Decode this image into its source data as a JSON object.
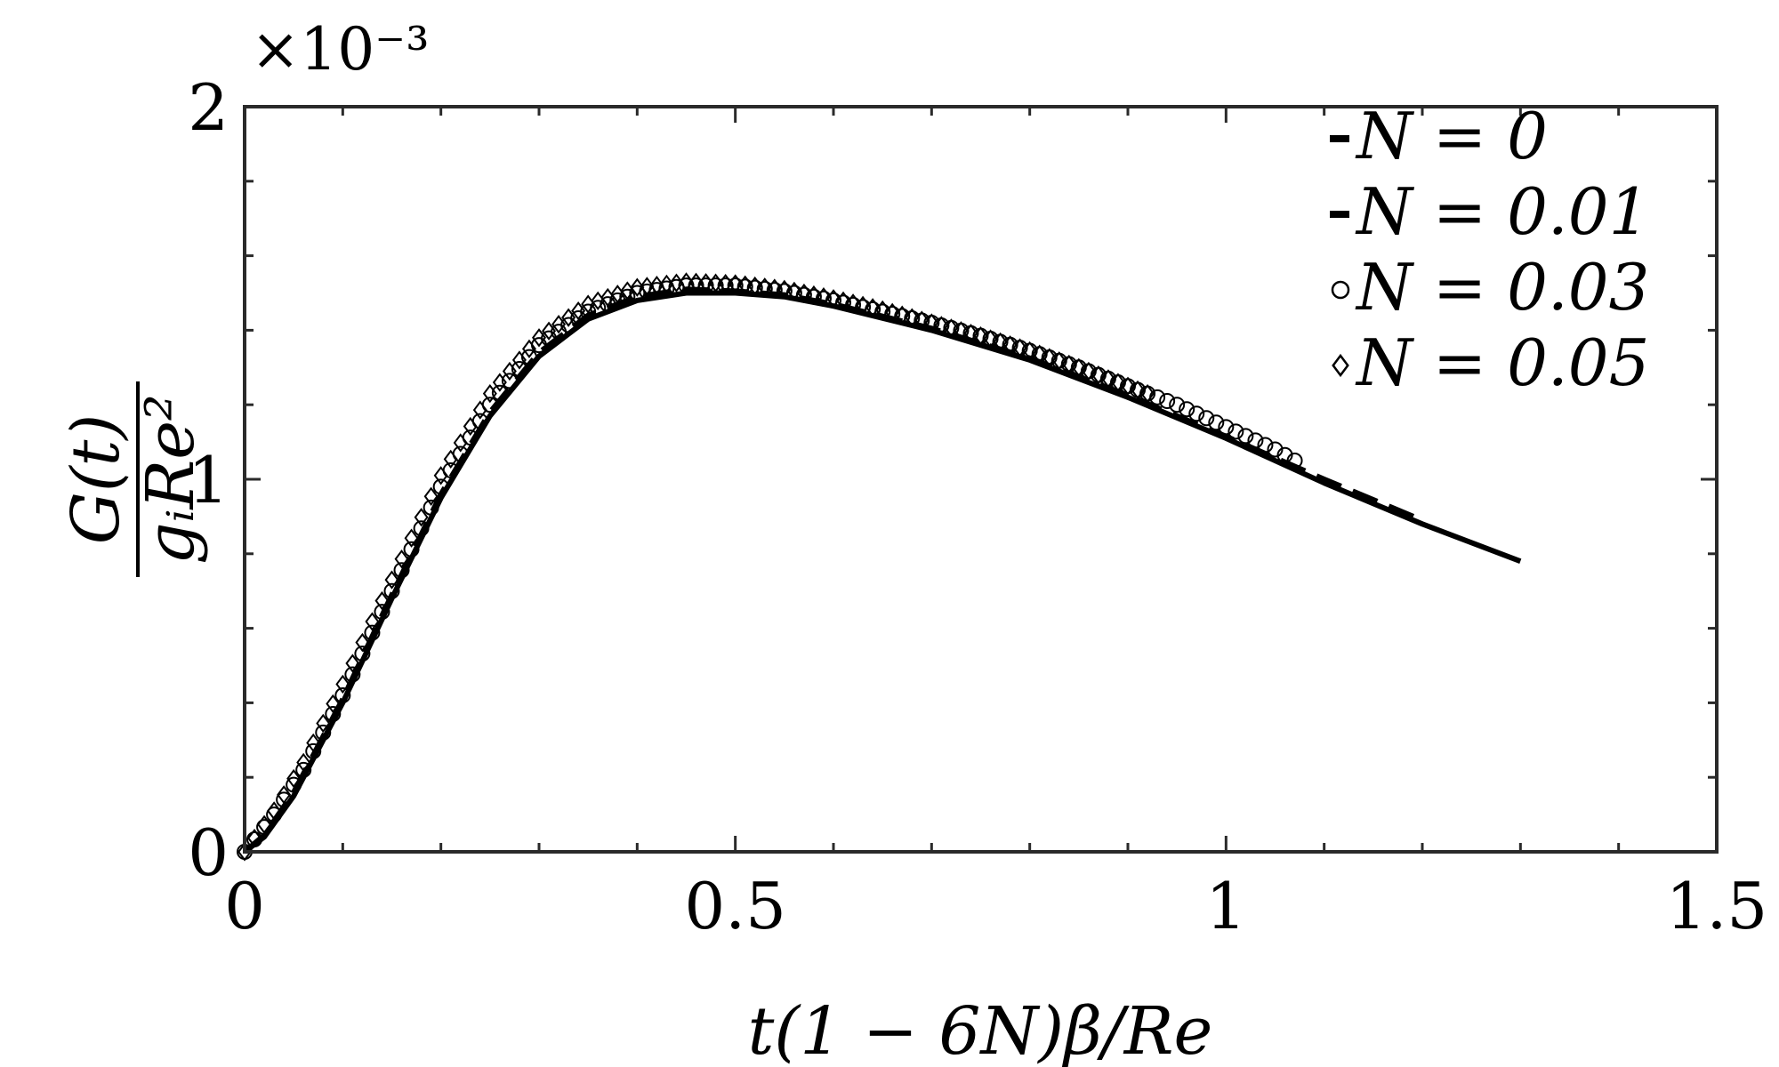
{
  "chart_data": {
    "type": "line",
    "xlabel": "t(1 − 6N)β/Re",
    "ylabel_numerator": "G(t)",
    "ylabel_denominator": "gᵢRe²",
    "y_exponent": "×10⁻³",
    "xlim": [
      0,
      1.5
    ],
    "ylim": [
      0,
      2
    ],
    "xticks": [
      0,
      0.5,
      1,
      1.5
    ],
    "xtick_labels": [
      "0",
      "0.5",
      "1",
      "1.5"
    ],
    "yticks": [
      0,
      1,
      2
    ],
    "ytick_labels": [
      "0",
      "1",
      "2"
    ],
    "x_minor_step": 0.1,
    "y_minor_step": 0.2,
    "grid": false,
    "legend_position": "top-right",
    "series": [
      {
        "name": "N = 0",
        "style": "solid",
        "marker": "none",
        "x": [
          0,
          0.02,
          0.05,
          0.08,
          0.1,
          0.15,
          0.2,
          0.25,
          0.3,
          0.35,
          0.4,
          0.45,
          0.5,
          0.55,
          0.6,
          0.7,
          0.8,
          0.9,
          1.0,
          1.1,
          1.2,
          1.3
        ],
        "y": [
          0,
          0.04,
          0.15,
          0.3,
          0.4,
          0.68,
          0.95,
          1.17,
          1.33,
          1.43,
          1.48,
          1.5,
          1.5,
          1.49,
          1.465,
          1.4,
          1.32,
          1.22,
          1.11,
          0.99,
          0.88,
          0.78
        ]
      },
      {
        "name": "N = 0.01",
        "style": "dashed",
        "marker": "none",
        "x": [
          0,
          0.02,
          0.05,
          0.08,
          0.1,
          0.15,
          0.2,
          0.25,
          0.3,
          0.35,
          0.4,
          0.45,
          0.5,
          0.55,
          0.6,
          0.7,
          0.8,
          0.9,
          1.0,
          1.1,
          1.2
        ],
        "y": [
          0,
          0.045,
          0.16,
          0.31,
          0.41,
          0.69,
          0.96,
          1.18,
          1.34,
          1.44,
          1.49,
          1.51,
          1.505,
          1.495,
          1.47,
          1.405,
          1.325,
          1.225,
          1.115,
          1.0,
          0.89
        ]
      },
      {
        "name": "N = 0.03",
        "style": "none",
        "marker": "circle",
        "x": [
          0,
          0.03,
          0.06,
          0.1,
          0.15,
          0.2,
          0.25,
          0.3,
          0.35,
          0.4,
          0.45,
          0.5,
          0.55,
          0.6,
          0.65,
          0.7,
          0.75,
          0.8,
          0.85,
          0.9,
          0.95,
          1.0,
          1.05,
          1.07
        ],
        "y": [
          0,
          0.1,
          0.22,
          0.42,
          0.7,
          0.98,
          1.2,
          1.36,
          1.45,
          1.5,
          1.52,
          1.52,
          1.505,
          1.48,
          1.45,
          1.42,
          1.385,
          1.345,
          1.3,
          1.25,
          1.2,
          1.14,
          1.08,
          1.05
        ]
      },
      {
        "name": "N = 0.05",
        "style": "none",
        "marker": "diamond",
        "x": [
          0,
          0.03,
          0.06,
          0.1,
          0.15,
          0.2,
          0.25,
          0.3,
          0.35,
          0.4,
          0.45,
          0.5,
          0.55,
          0.6,
          0.65,
          0.7,
          0.75,
          0.8,
          0.85,
          0.9,
          0.92
        ],
        "y": [
          0,
          0.11,
          0.24,
          0.45,
          0.73,
          1.01,
          1.23,
          1.38,
          1.47,
          1.515,
          1.53,
          1.525,
          1.51,
          1.485,
          1.455,
          1.42,
          1.385,
          1.345,
          1.3,
          1.25,
          1.23
        ]
      }
    ]
  }
}
